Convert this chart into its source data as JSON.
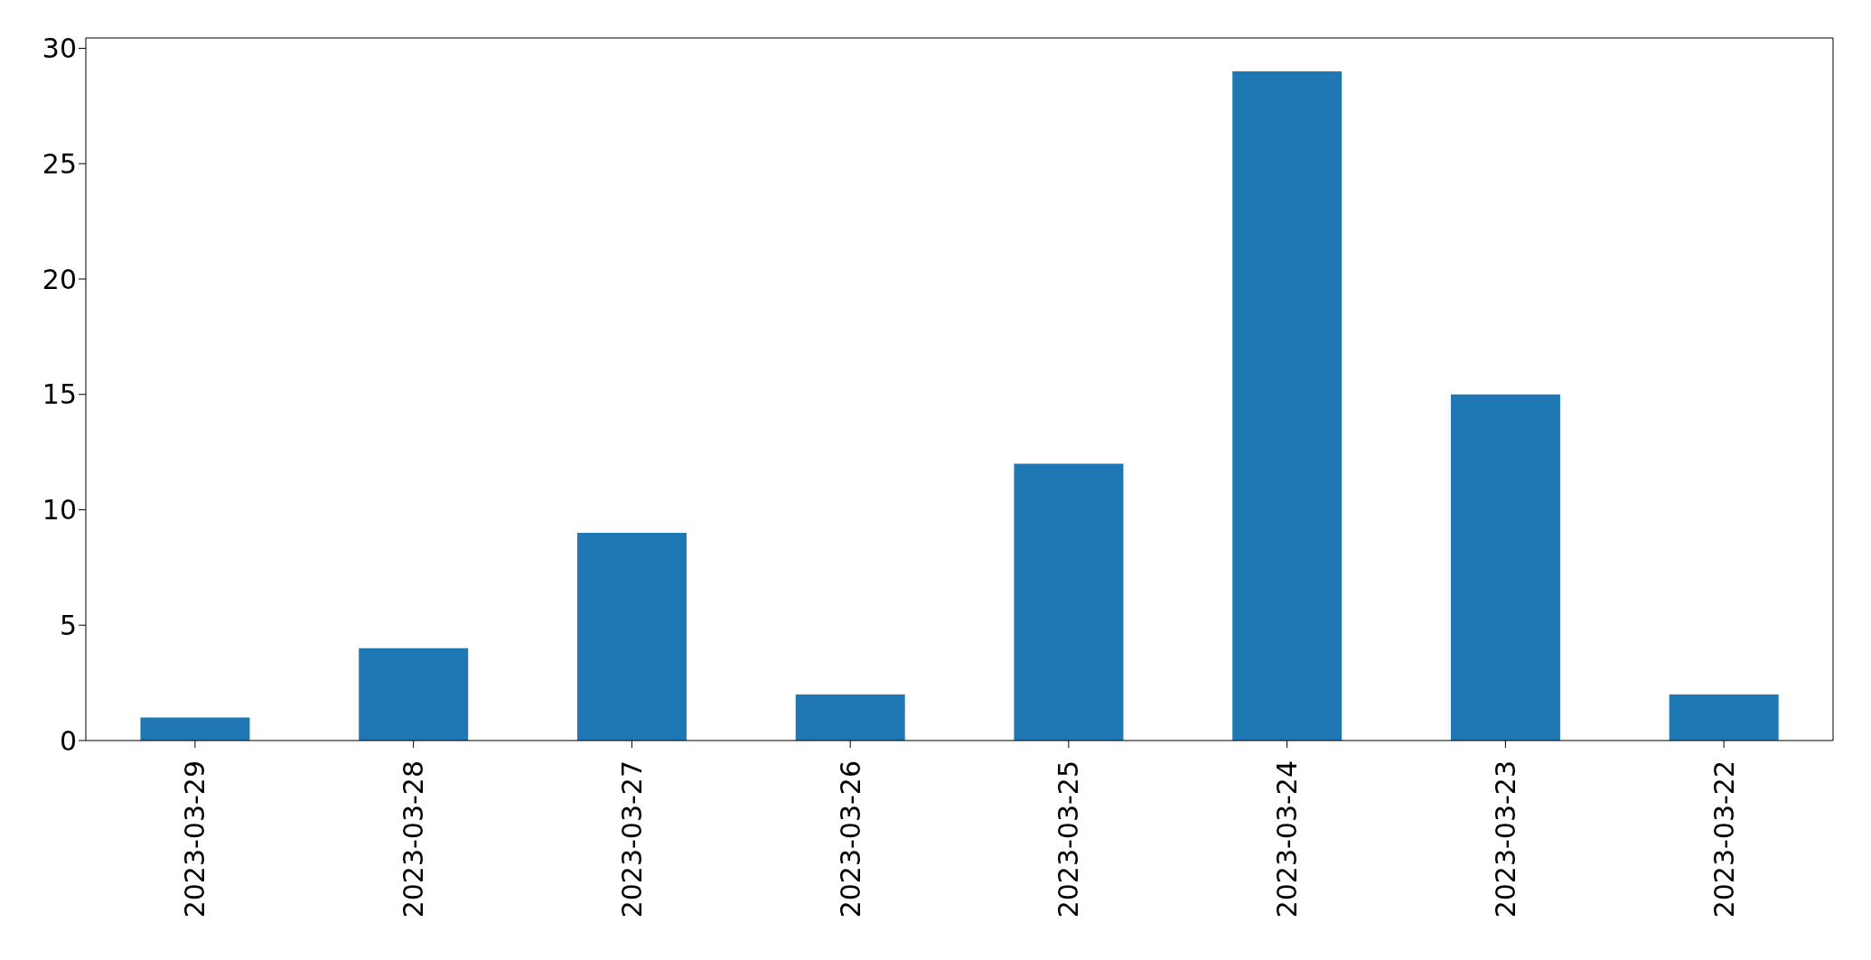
{
  "chart_data": {
    "type": "bar",
    "categories": [
      "2023-03-29",
      "2023-03-28",
      "2023-03-27",
      "2023-03-26",
      "2023-03-25",
      "2023-03-24",
      "2023-03-23",
      "2023-03-22"
    ],
    "values": [
      1,
      4,
      9,
      2,
      12,
      29,
      15,
      2
    ],
    "color": "#1f77b4",
    "ylim": [
      0,
      30.45
    ],
    "yticks": [
      0,
      5,
      10,
      15,
      20,
      25,
      30
    ]
  }
}
